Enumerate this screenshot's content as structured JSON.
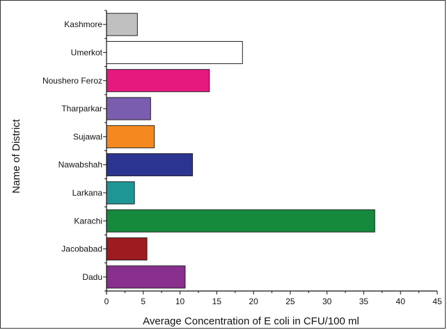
{
  "chart_data": {
    "type": "bar",
    "orientation": "horizontal",
    "categories": [
      "Kashmore",
      "Umerkot",
      "Noushero Feroz",
      "Tharparkar",
      "Sujawal",
      "Nawabshah",
      "Larkana",
      "Karachi",
      "Jacobabad",
      "Dadu"
    ],
    "values": [
      4.2,
      18.5,
      14.0,
      6.0,
      6.5,
      11.7,
      3.8,
      36.5,
      5.5,
      10.7
    ],
    "colors": [
      "#c0c0c0",
      "#ffffff",
      "#e6197f",
      "#7b5db0",
      "#f5891f",
      "#2b3591",
      "#1e9696",
      "#158a3c",
      "#9e1b20",
      "#892f8e"
    ],
    "xlabel": "Average Concentration of E coli in CFU/100 ml",
    "ylabel": "Name of District",
    "xlim": [
      0,
      45
    ],
    "xticks": [
      0,
      5,
      10,
      15,
      20,
      25,
      30,
      35,
      40,
      45
    ],
    "grid": false
  }
}
